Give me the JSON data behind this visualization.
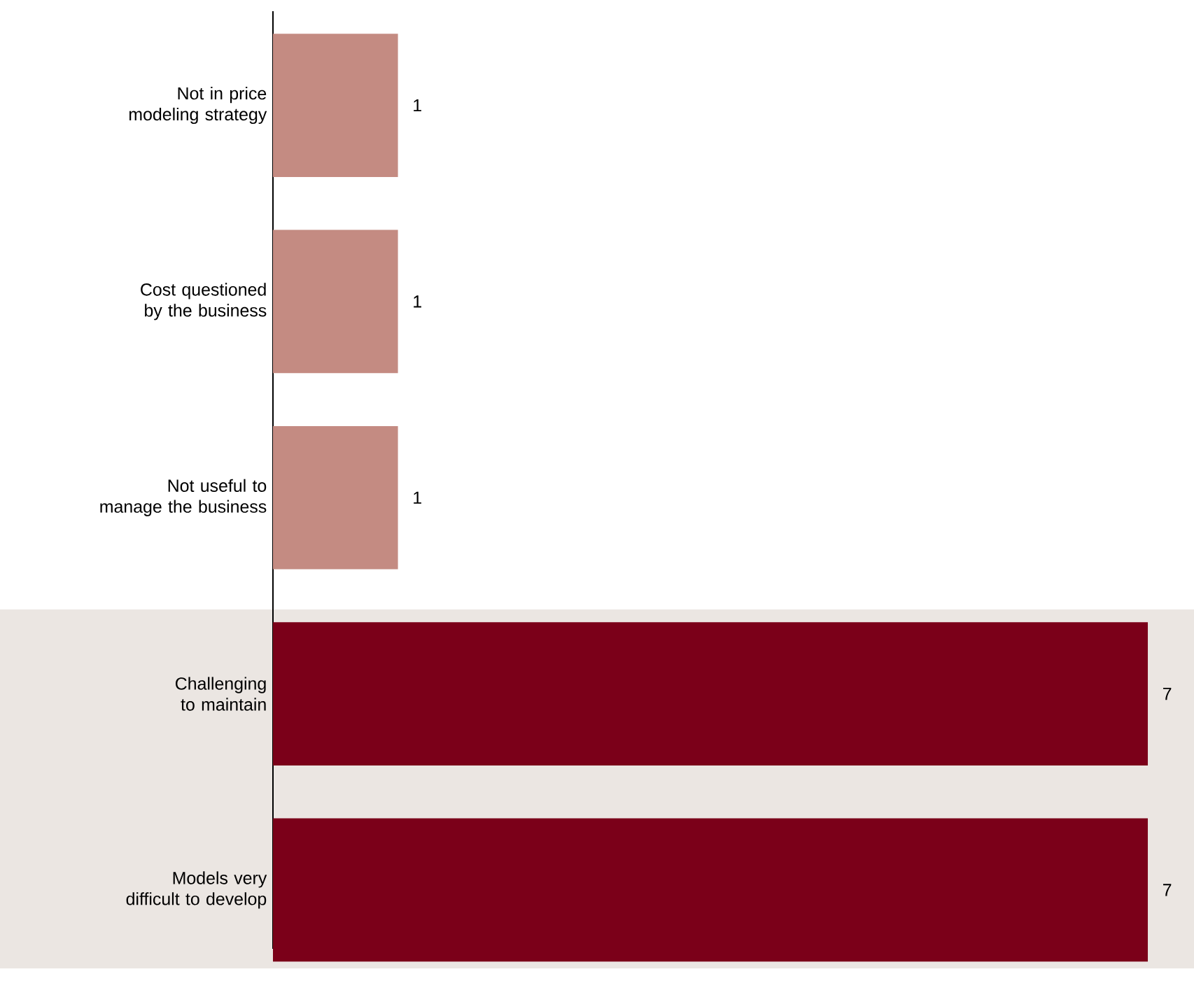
{
  "chart_data": {
    "type": "bar",
    "orientation": "horizontal",
    "data_labels": true,
    "categories": [
      "Not in price modeling strategy",
      "Cost questioned by the business",
      "Not useful to manage the business",
      "Challenging to maintain",
      "Models very difficult to develop"
    ],
    "values": [
      1,
      1,
      1,
      7,
      7
    ],
    "colors": [
      "#c48b82",
      "#c48b82",
      "#c48b82",
      "#7b0019",
      "#7b0019"
    ],
    "bands": [
      {
        "axis": "y",
        "from": "Challenging to maintain",
        "to": "Models very difficult to develop",
        "color": "#ebe6e2"
      }
    ]
  }
}
